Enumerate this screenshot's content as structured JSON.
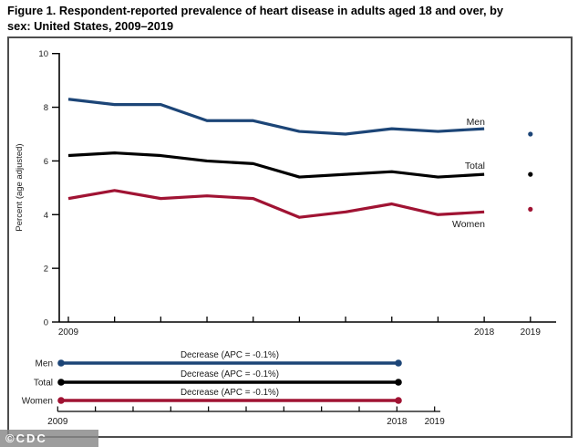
{
  "header": {
    "title_line1": "Figure 1. Respondent-reported prevalence of heart disease in adults aged 18 and over, by",
    "title_line2": "sex: United States, 2009–2019"
  },
  "watermark": {
    "text": "©CDC"
  },
  "chart_data": {
    "type": "line",
    "title": "Figure 1. Respondent-reported prevalence of heart disease in adults aged 18 and over, by sex: United States, 2009–2019",
    "xlabel": "",
    "ylabel": "Percent (age adjusted)",
    "ylim": [
      0,
      10
    ],
    "yticks": [
      0,
      2,
      4,
      6,
      8,
      10
    ],
    "x": [
      2009,
      2010,
      2011,
      2012,
      2013,
      2014,
      2015,
      2016,
      2017,
      2018
    ],
    "x_tick_years": [
      2009,
      2010,
      2011,
      2012,
      2013,
      2014,
      2015,
      2016,
      2017,
      2018,
      2019
    ],
    "x_axis_labels": [
      "2009",
      "2018",
      "2019"
    ],
    "grid": false,
    "legend_position": "inline-right-of-lines",
    "note_2019": "2019 shown as separate unconnected points",
    "series": [
      {
        "name": "Men",
        "color": "#1c4577",
        "values": [
          8.3,
          8.1,
          8.1,
          7.5,
          7.5,
          7.1,
          7.0,
          7.2,
          7.1,
          7.2
        ],
        "value_2019": 7.0
      },
      {
        "name": "Total",
        "color": "#000000",
        "values": [
          6.2,
          6.3,
          6.2,
          6.0,
          5.9,
          5.4,
          5.5,
          5.6,
          5.4,
          5.5
        ],
        "value_2019": 5.5
      },
      {
        "name": "Women",
        "color": "#a01333",
        "values": [
          4.6,
          4.9,
          4.6,
          4.7,
          4.6,
          3.9,
          4.1,
          4.4,
          4.0,
          4.1
        ],
        "value_2019": 4.2
      }
    ]
  },
  "bottom_panel": {
    "rows": [
      {
        "label": "Men",
        "annotation": "Decrease (APC = -0.1%)",
        "color": "#1c4577"
      },
      {
        "label": "Total",
        "annotation": "Decrease (APC = -0.1%)",
        "color": "#000000"
      },
      {
        "label": "Women",
        "annotation": "Decrease (APC = -0.1%)",
        "color": "#a01333"
      }
    ],
    "axis_labels": [
      "2009",
      "2018",
      "2019"
    ]
  }
}
